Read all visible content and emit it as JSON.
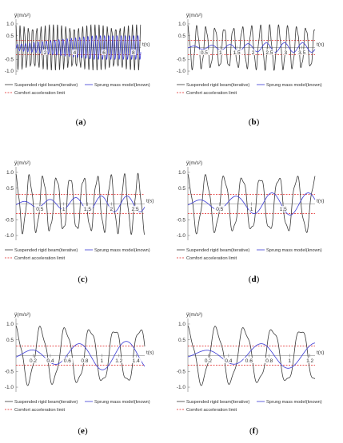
{
  "ylabel": "ÿ(m/s²)",
  "xlabel": "t(s)",
  "legend": {
    "beam": "Suspended rigid beam(iterative)",
    "sprung": "Sprung mass model(known)",
    "comfort": "Comfort acceleration limit"
  },
  "colors": {
    "beam": "#3a3a3a",
    "sprung": "#3b3bd6",
    "comfort": "#e02020"
  },
  "comfort_limit": 0.3,
  "chart_data": [
    {
      "type": "line",
      "label": "(a)",
      "letter": "a",
      "xlim": [
        0,
        8.5
      ],
      "ylim": [
        -1.1,
        1.1
      ],
      "x_ticks": [
        2,
        4,
        6,
        8
      ],
      "y_ticks": [
        -1.0,
        -0.5,
        0.5,
        1.0
      ],
      "beam_cycles": 30,
      "beam_amp": 1.0,
      "sprung_cycles": 30,
      "sprung_amp": 0.5,
      "series": [
        {
          "name": "Suspended rigid beam(iterative)",
          "description": "oscillation, amplitude ~1.0, ~30 cycles"
        },
        {
          "name": "Sprung mass model(known)",
          "description": "oscillation, amplitude up to ~0.5"
        }
      ]
    },
    {
      "type": "line",
      "label": "(b)",
      "letter": "b",
      "xlim": [
        0,
        3.9
      ],
      "ylim": [
        -1.1,
        1.1
      ],
      "x_ticks": [
        0.5,
        1.0,
        1.5,
        2.0,
        2.5,
        3.0,
        3.5
      ],
      "y_ticks": [
        -1.0,
        -0.5,
        0.5,
        1.0
      ],
      "beam_cycles": 14,
      "beam_amp": 1.0,
      "sprung_cycles": 7,
      "sprung_amp": 0.2,
      "series": [
        {
          "name": "Suspended rigid beam(iterative)",
          "description": "oscillation, amplitude ~1.0"
        },
        {
          "name": "Sprung mass model(known)",
          "description": "small oscillation, amplitude ~0.2"
        }
      ]
    },
    {
      "type": "line",
      "label": "(c)",
      "letter": "c",
      "xlim": [
        0,
        2.7
      ],
      "ylim": [
        -1.1,
        1.1
      ],
      "x_ticks": [
        0.5,
        1.0,
        1.5,
        2.0,
        2.5
      ],
      "y_ticks": [
        -1.0,
        -0.5,
        0.5,
        1.0
      ],
      "beam_cycles": 9.5,
      "beam_amp": 1.0,
      "sprung_cycles": 5,
      "sprung_amp": 0.25,
      "series": [
        {
          "name": "Suspended rigid beam(iterative)",
          "description": "oscillation, amplitude ~1.0"
        },
        {
          "name": "Sprung mass model(known)",
          "description": "oscillation, amplitude ~0.25"
        }
      ]
    },
    {
      "type": "line",
      "label": "(d)",
      "letter": "d",
      "xlim": [
        0,
        2.0
      ],
      "ylim": [
        -1.1,
        1.1
      ],
      "x_ticks": [
        0.5,
        1.0,
        1.5
      ],
      "y_ticks": [
        -1.0,
        -0.5,
        0.5,
        1.0
      ],
      "beam_cycles": 7,
      "beam_amp": 1.0,
      "sprung_cycles": 3.5,
      "sprung_amp": 0.35,
      "series": [
        {
          "name": "Suspended rigid beam(iterative)",
          "description": "oscillation, amplitude ~1.0"
        },
        {
          "name": "Sprung mass model(known)",
          "description": "oscillation, amplitude ~0.35"
        }
      ]
    },
    {
      "type": "line",
      "label": "(e)",
      "letter": "e",
      "xlim": [
        0,
        1.5
      ],
      "ylim": [
        -1.1,
        1.1
      ],
      "x_ticks": [
        0.2,
        0.4,
        0.6,
        0.8,
        1.0,
        1.2,
        1.4
      ],
      "y_ticks": [
        -1.0,
        -0.5,
        0.5,
        1.0
      ],
      "beam_cycles": 5.2,
      "beam_amp": 1.0,
      "sprung_cycles": 2.7,
      "sprung_amp": 0.45,
      "series": [
        {
          "name": "Suspended rigid beam(iterative)",
          "description": "oscillation, amplitude ~1.0"
        },
        {
          "name": "Sprung mass model(known)",
          "description": "oscillation, amplitude ~0.45"
        }
      ]
    },
    {
      "type": "line",
      "label": "(f)",
      "letter": "f",
      "xlim": [
        0,
        1.25
      ],
      "ylim": [
        -1.1,
        1.1
      ],
      "x_ticks": [
        0.2,
        0.4,
        0.6,
        0.8,
        1.0,
        1.2
      ],
      "y_ticks": [
        -1.0,
        -0.5,
        0.5,
        1.0
      ],
      "beam_cycles": 4.5,
      "beam_amp": 1.0,
      "sprung_cycles": 2.3,
      "sprung_amp": 0.4,
      "series": [
        {
          "name": "Suspended rigid beam(iterative)",
          "description": "oscillation, amplitude ~1.0"
        },
        {
          "name": "Sprung mass model(known)",
          "description": "oscillation, amplitude ~0.4"
        }
      ]
    }
  ]
}
